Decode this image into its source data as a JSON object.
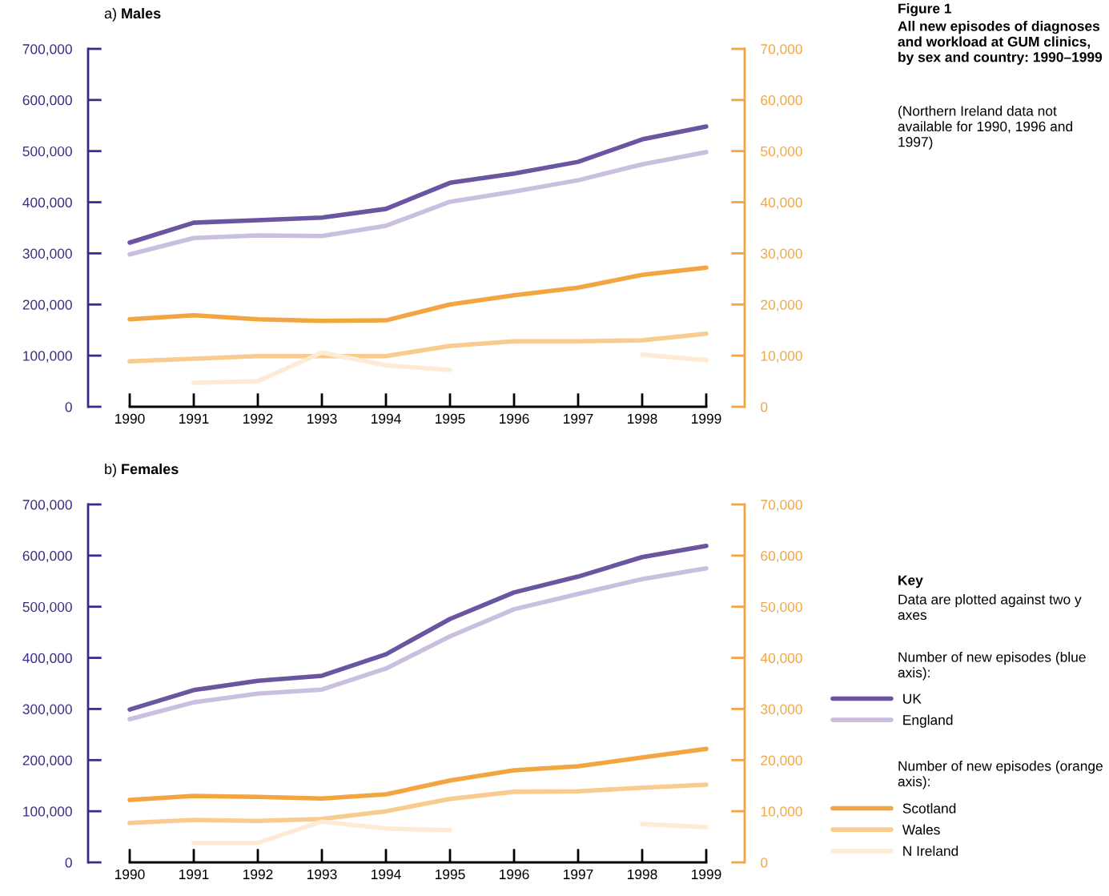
{
  "chart_data": [
    {
      "type": "line",
      "title": "a) Males",
      "categories": [
        "1990",
        "1991",
        "1992",
        "1993",
        "1994",
        "1995",
        "1996",
        "1997",
        "1998",
        "1999"
      ],
      "ylim": [
        0,
        700000
      ],
      "yticks": [
        0,
        {
          "value": 100000,
          "label": "100,000"
        },
        {
          "value": 200000,
          "label": "200,000"
        },
        {
          "value": 300000,
          "label": "300,000"
        },
        {
          "value": 400000,
          "label": "400,000"
        },
        {
          "value": 500000,
          "label": "500,000"
        },
        {
          "value": 600000,
          "label": "600,000"
        },
        {
          "value": 700000,
          "label": "700,000"
        }
      ],
      "y2lim": [
        0,
        70000
      ],
      "y2ticks": [
        0,
        {
          "value": 10000,
          "label": "10,000"
        },
        {
          "value": 20000,
          "label": "20,000"
        },
        {
          "value": 30000,
          "label": "30,000"
        },
        {
          "value": 40000,
          "label": "40,000"
        },
        {
          "value": 50000,
          "label": "50,000"
        },
        {
          "value": 60000,
          "label": "60,000"
        },
        {
          "value": 70000,
          "label": "70,000"
        }
      ],
      "annotations": [
        "Figure 1",
        "All new episodes of diagnoses and workload at GUM clinics, by sex and country: 1990–1999",
        "(Northern Ireland data not available for 1990, 1996 and 1997)"
      ],
      "series": [
        {
          "color": "#6a55a0",
          "values": [
            321000,
            360000,
            365000,
            370000,
            387000,
            438000,
            456000,
            479000,
            523000,
            548000
          ]
        },
        {
          "color": "#cbbfdf",
          "values": [
            298000,
            330000,
            335000,
            334000,
            354000,
            401000,
            421000,
            443000,
            474000,
            498000
          ]
        },
        {
          "color": "#f2a540",
          "axis": "y2",
          "values": [
            17100,
            17900,
            17100,
            16800,
            16900,
            20000,
            21800,
            23300,
            25800,
            27200
          ]
        },
        {
          "color": "#f9cb8f",
          "axis": "y2",
          "values": [
            8900,
            9400,
            9900,
            9900,
            9900,
            11900,
            12800,
            12800,
            13000,
            14300
          ]
        },
        {
          "color": "#fdebd6",
          "axis": "y2",
          "values": [
            null,
            4700,
            5000,
            10600,
            8100,
            7200,
            null,
            null,
            10200,
            9100
          ]
        }
      ]
    },
    {
      "type": "line",
      "title": "b) Females",
      "categories": [
        "1990",
        "1991",
        "1992",
        "1993",
        "1994",
        "1995",
        "1996",
        "1997",
        "1998",
        "1999"
      ],
      "ylim": [
        0,
        700000
      ],
      "yticks": [
        0,
        {
          "value": 100000,
          "label": "100,000"
        },
        {
          "value": 200000,
          "label": "200,000"
        },
        {
          "value": 300000,
          "label": "300,000"
        },
        {
          "value": 400000,
          "label": "400,000"
        },
        {
          "value": 500000,
          "label": "500,000"
        },
        {
          "value": 600000,
          "label": "600,000"
        },
        {
          "value": 700000,
          "label": "700,000"
        }
      ],
      "y2lim": [
        0,
        70000
      ],
      "y2ticks": [
        0,
        {
          "value": 10000,
          "label": "10,000"
        },
        {
          "value": 20000,
          "label": "20,000"
        },
        {
          "value": 30000,
          "label": "30,000"
        },
        {
          "value": 40000,
          "label": "40,000"
        },
        {
          "value": 50000,
          "label": "50,000"
        },
        {
          "value": 60000,
          "label": "60,000"
        },
        {
          "value": 70000,
          "label": "70,000"
        }
      ],
      "legend": "right",
      "annotations": [
        "Key",
        "Data are plotted against two y axes",
        "Number of new episodes (blue axis):",
        "Number of new episodes (orange axis):"
      ],
      "series": [
        {
          "name": "UK",
          "color": "#6a55a0",
          "values": [
            299000,
            337000,
            355000,
            365000,
            407000,
            476000,
            528000,
            559000,
            597000,
            619000
          ]
        },
        {
          "name": "England",
          "color": "#cbbfdf",
          "values": [
            280000,
            313000,
            330000,
            338000,
            379000,
            442000,
            495000,
            525000,
            554000,
            575000
          ]
        },
        {
          "name": "Scotland",
          "color": "#f2a540",
          "axis": "y2",
          "values": [
            12200,
            13000,
            12800,
            12500,
            13300,
            16000,
            18000,
            18800,
            20500,
            22200
          ]
        },
        {
          "name": "Wales",
          "color": "#f9cb8f",
          "axis": "y2",
          "values": [
            7700,
            8300,
            8100,
            8500,
            10000,
            12400,
            13800,
            13900,
            14600,
            15200
          ]
        },
        {
          "name": "N Ireland",
          "color": "#fdebd6",
          "axis": "y2",
          "values": [
            null,
            3800,
            3800,
            8000,
            6600,
            6300,
            null,
            null,
            7500,
            6900
          ]
        }
      ]
    }
  ]
}
